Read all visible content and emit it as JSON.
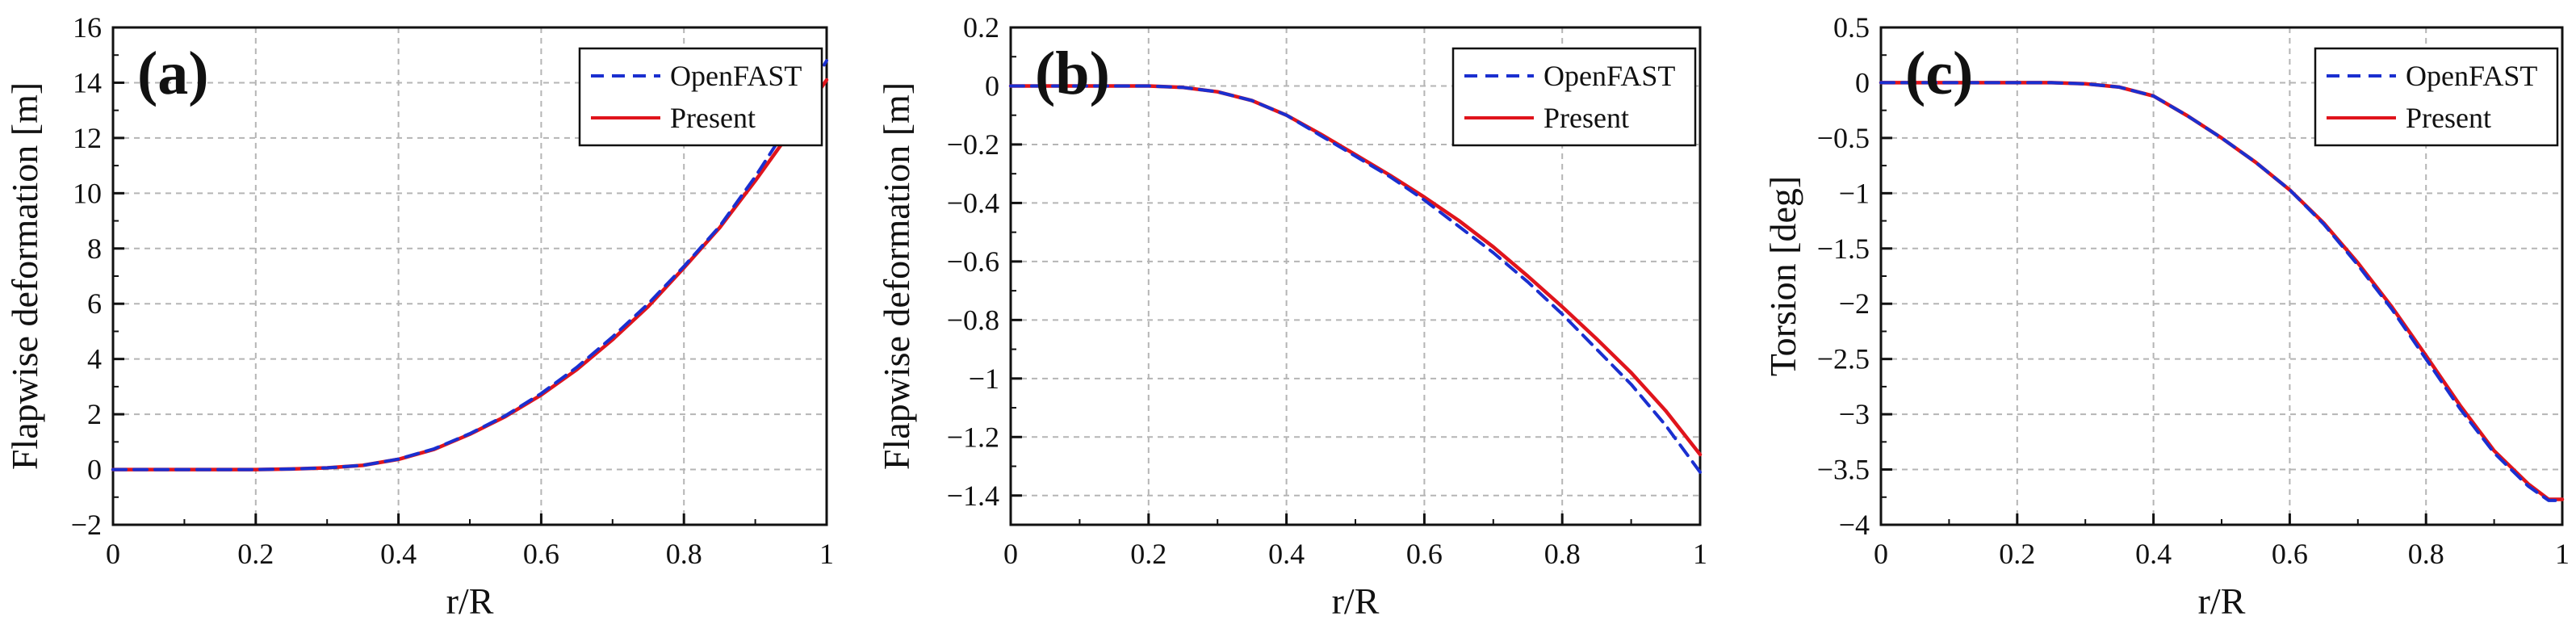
{
  "colors": {
    "openfast": "#1a2fd0",
    "present": "#e0141c",
    "grid": "#b5b5b5",
    "axis": "#111111"
  },
  "chart_data": [
    {
      "type": "line",
      "panel_label": "(a)",
      "title": "",
      "xlabel": "r/R",
      "ylabel": "Flapwise deformation [m]",
      "xlim": [
        0,
        1
      ],
      "ylim": [
        -2,
        16
      ],
      "xticks": [
        0,
        0.2,
        0.4,
        0.6,
        0.8,
        1
      ],
      "xtick_labels": [
        "0",
        "0.2",
        "0.4",
        "0.6",
        "0.8",
        "1"
      ],
      "yticks": [
        -2,
        0,
        2,
        4,
        6,
        8,
        10,
        12,
        14,
        16
      ],
      "ytick_labels": [
        "−2",
        "0",
        "2",
        "4",
        "6",
        "8",
        "10",
        "12",
        "14",
        "16"
      ],
      "grid": true,
      "legend_position": "top-right",
      "x": [
        0,
        0.1,
        0.2,
        0.25,
        0.3,
        0.35,
        0.4,
        0.45,
        0.5,
        0.55,
        0.6,
        0.65,
        0.7,
        0.75,
        0.8,
        0.85,
        0.9,
        0.95,
        1.0
      ],
      "series": [
        {
          "name": "OpenFAST",
          "style": "dashed",
          "values": [
            0,
            0,
            0,
            0.02,
            0.06,
            0.15,
            0.38,
            0.75,
            1.3,
            1.95,
            2.75,
            3.7,
            4.8,
            6.0,
            7.35,
            8.8,
            10.6,
            12.6,
            14.8
          ]
        },
        {
          "name": "Present",
          "style": "solid",
          "values": [
            0,
            0,
            0,
            0.02,
            0.06,
            0.15,
            0.37,
            0.73,
            1.28,
            1.92,
            2.7,
            3.62,
            4.7,
            5.9,
            7.3,
            8.75,
            10.45,
            12.25,
            14.1
          ]
        }
      ]
    },
    {
      "type": "line",
      "panel_label": "(b)",
      "title": "",
      "xlabel": "r/R",
      "ylabel": "Flapwise deformation [m]",
      "xlim": [
        0,
        1
      ],
      "ylim": [
        -1.5,
        0.2
      ],
      "xticks": [
        0,
        0.2,
        0.4,
        0.6,
        0.8,
        1
      ],
      "xtick_labels": [
        "0",
        "0.2",
        "0.4",
        "0.6",
        "0.8",
        "1"
      ],
      "yticks": [
        -1.4,
        -1.2,
        -1.0,
        -0.8,
        -0.6,
        -0.4,
        -0.2,
        0,
        0.2
      ],
      "ytick_labels": [
        "−1.4",
        "−1.2",
        "−1",
        "−0.8",
        "−0.6",
        "−0.4",
        "−0.2",
        "0",
        "0.2"
      ],
      "grid": true,
      "legend_position": "top-right",
      "x": [
        0,
        0.1,
        0.2,
        0.25,
        0.3,
        0.35,
        0.4,
        0.45,
        0.5,
        0.55,
        0.6,
        0.65,
        0.7,
        0.75,
        0.8,
        0.85,
        0.9,
        0.95,
        1.0
      ],
      "series": [
        {
          "name": "OpenFAST",
          "style": "dashed",
          "values": [
            0,
            0,
            0,
            -0.005,
            -0.02,
            -0.05,
            -0.1,
            -0.17,
            -0.24,
            -0.31,
            -0.39,
            -0.48,
            -0.57,
            -0.67,
            -0.78,
            -0.9,
            -1.02,
            -1.16,
            -1.32
          ]
        },
        {
          "name": "Present",
          "style": "solid",
          "values": [
            0,
            0,
            0,
            -0.005,
            -0.02,
            -0.05,
            -0.1,
            -0.165,
            -0.235,
            -0.305,
            -0.38,
            -0.46,
            -0.55,
            -0.65,
            -0.755,
            -0.865,
            -0.98,
            -1.11,
            -1.26
          ]
        }
      ]
    },
    {
      "type": "line",
      "panel_label": "(c)",
      "title": "",
      "xlabel": "r/R",
      "ylabel": "Torsion [deg]",
      "xlim": [
        0,
        1
      ],
      "ylim": [
        -4,
        0.5
      ],
      "xticks": [
        0,
        0.2,
        0.4,
        0.6,
        0.8,
        1
      ],
      "xtick_labels": [
        "0",
        "0.2",
        "0.4",
        "0.6",
        "0.8",
        "1"
      ],
      "yticks": [
        -4,
        -3.5,
        -3,
        -2.5,
        -2,
        -1.5,
        -1,
        -0.5,
        0,
        0.5
      ],
      "ytick_labels": [
        "−4",
        "−3.5",
        "−3",
        "−2.5",
        "−2",
        "−1.5",
        "−1",
        "−0.5",
        "0",
        "0.5"
      ],
      "grid": true,
      "legend_position": "top-right",
      "x": [
        0,
        0.1,
        0.2,
        0.25,
        0.3,
        0.35,
        0.4,
        0.45,
        0.5,
        0.55,
        0.6,
        0.65,
        0.7,
        0.75,
        0.8,
        0.85,
        0.9,
        0.95,
        0.98,
        1.0
      ],
      "series": [
        {
          "name": "OpenFAST",
          "style": "dashed",
          "values": [
            0,
            0,
            0,
            0,
            -0.01,
            -0.04,
            -0.12,
            -0.3,
            -0.5,
            -0.72,
            -0.97,
            -1.28,
            -1.65,
            -2.05,
            -2.5,
            -2.95,
            -3.35,
            -3.65,
            -3.78,
            -3.78
          ]
        },
        {
          "name": "Present",
          "style": "solid",
          "values": [
            0,
            0,
            0,
            0,
            -0.01,
            -0.04,
            -0.12,
            -0.3,
            -0.5,
            -0.72,
            -0.97,
            -1.27,
            -1.63,
            -2.03,
            -2.47,
            -2.92,
            -3.33,
            -3.63,
            -3.77,
            -3.77
          ]
        }
      ]
    }
  ]
}
